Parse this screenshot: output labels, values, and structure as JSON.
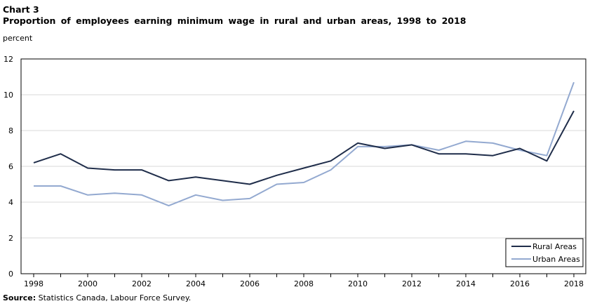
{
  "header": {
    "chart_label": "Chart 3",
    "title": "Proportion of employees earning minimum wage in rural and urban areas, 1998 to 2018",
    "unit_label": "percent"
  },
  "footer": {
    "source_label": "Source:",
    "source_text": " Statistics Canada, Labour Force Survey."
  },
  "colors": {
    "rural": "#1f2d4a",
    "urban": "#93a9d0",
    "grid": "#d9d9d9",
    "axis": "#000000"
  },
  "chart_data": {
    "type": "line",
    "title": "Proportion of employees earning minimum wage in rural and urban areas, 1998 to 2018",
    "xlabel": "",
    "ylabel": "percent",
    "x": [
      1998,
      1999,
      2000,
      2001,
      2002,
      2003,
      2004,
      2005,
      2006,
      2007,
      2008,
      2009,
      2010,
      2011,
      2012,
      2013,
      2014,
      2015,
      2016,
      2017,
      2018
    ],
    "xticks": [
      "1998",
      "2000",
      "2002",
      "2004",
      "2006",
      "2008",
      "2010",
      "2012",
      "2014",
      "2016",
      "2018"
    ],
    "yticks": [
      "0",
      "2",
      "4",
      "6",
      "8",
      "10",
      "12"
    ],
    "ylim": [
      0,
      12
    ],
    "xlim": [
      1998,
      2018
    ],
    "grid": true,
    "legend_position": "bottom-right",
    "series": [
      {
        "name": "Rural Areas",
        "values": [
          6.2,
          6.7,
          5.9,
          5.8,
          5.8,
          5.2,
          5.4,
          5.2,
          5.0,
          5.5,
          5.9,
          6.3,
          7.3,
          7.0,
          7.2,
          6.7,
          6.7,
          6.6,
          7.0,
          6.3,
          9.1
        ]
      },
      {
        "name": "Urban Areas",
        "values": [
          4.9,
          4.9,
          4.4,
          4.5,
          4.4,
          3.8,
          4.4,
          4.1,
          4.2,
          5.0,
          5.1,
          5.8,
          7.1,
          7.1,
          7.2,
          6.9,
          7.4,
          7.3,
          6.9,
          6.6,
          10.7
        ]
      }
    ]
  }
}
